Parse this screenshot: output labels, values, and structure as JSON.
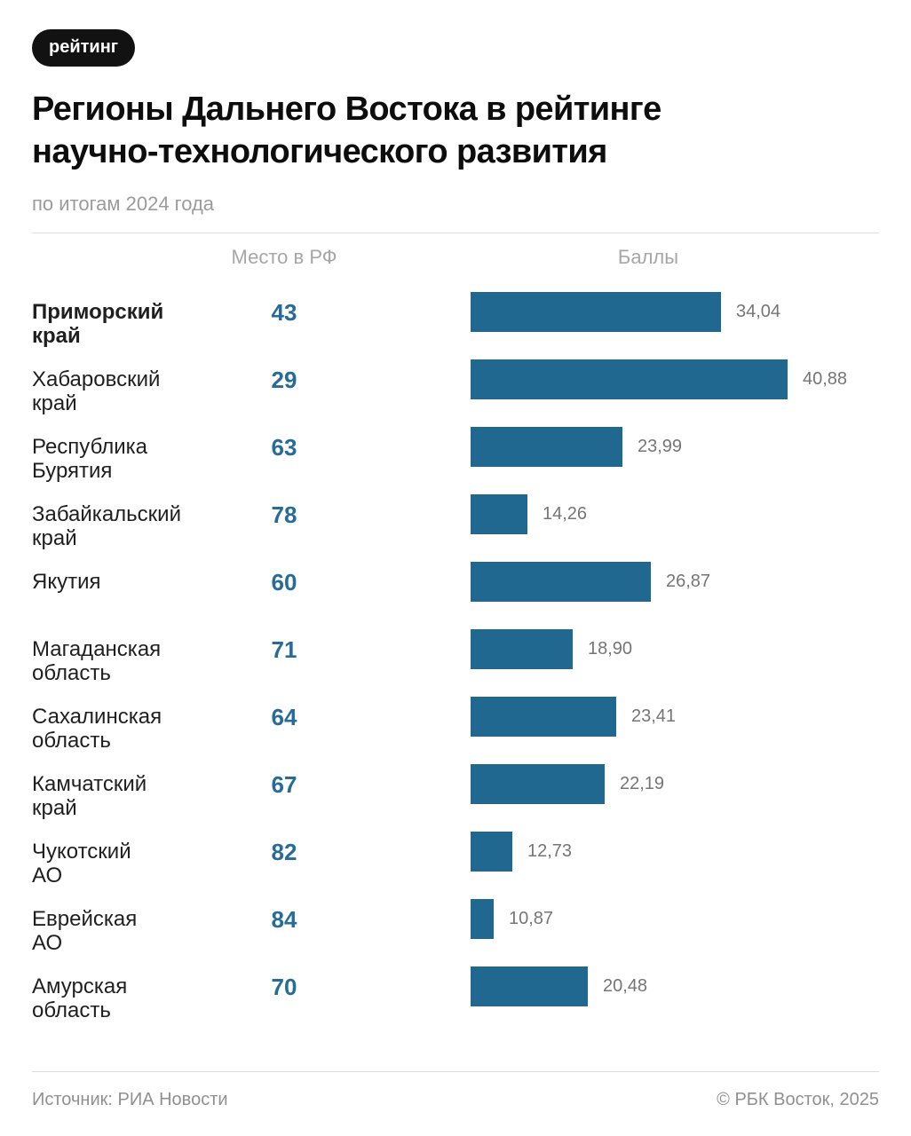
{
  "badge": {
    "label": "рейтинг"
  },
  "header": {
    "title_line1": "Регионы Дальнего Востока в рейтинге",
    "title_line2": "научно-технологического развития",
    "subtitle": "по итогам 2024 года"
  },
  "table": {
    "rank_header": "Место в РФ",
    "score_header": "Баллы"
  },
  "footer": {
    "source": "Источник: РИА Новости",
    "copyright": "© РБК Восток, 2025"
  },
  "colors": {
    "bar": "#20688f",
    "rank_text": "#266b9a",
    "badge_bg": "#121212",
    "badge_text": "#ffffff"
  },
  "chart_data": {
    "type": "bar",
    "orientation": "horizontal",
    "title": "Регионы Дальнего Востока в рейтинге научно-технологического развития",
    "subtitle": "по итогам 2024 года",
    "categories": [
      "Приморский край",
      "Хабаровский край",
      "Республика Бурятия",
      "Забайкальский край",
      "Якутия",
      "Магаданская область",
      "Сахалинская область",
      "Камчатский край",
      "Чукотский АО",
      "Еврейская АО",
      "Амурская область"
    ],
    "series": [
      {
        "name": "Место в РФ",
        "values": [
          43,
          29,
          63,
          78,
          60,
          71,
          64,
          67,
          82,
          84,
          70
        ]
      },
      {
        "name": "Баллы",
        "values": [
          34.04,
          40.88,
          23.99,
          14.26,
          26.87,
          18.9,
          23.41,
          22.19,
          12.73,
          10.87,
          20.48
        ]
      }
    ],
    "value_labels": [
      "34,04",
      "40,88",
      "23,99",
      "14,26",
      "26,87",
      "18,90",
      "23,41",
      "22,19",
      "12,73",
      "10,87",
      "20,48"
    ],
    "legend": "none",
    "grid": "off",
    "highlighted_category": "Приморский край",
    "source": "РИА Новости"
  },
  "rows": [
    {
      "name_lines": [
        "Приморский",
        "край"
      ],
      "rank": "43",
      "score": 34.04,
      "score_label": "34,04",
      "bold": true
    },
    {
      "name_lines": [
        "Хабаровский",
        "край"
      ],
      "rank": "29",
      "score": 40.88,
      "score_label": "40,88",
      "bold": false
    },
    {
      "name_lines": [
        "Республика",
        "Бурятия"
      ],
      "rank": "63",
      "score": 23.99,
      "score_label": "23,99",
      "bold": false
    },
    {
      "name_lines": [
        "Забайкальский",
        "край"
      ],
      "rank": "78",
      "score": 14.26,
      "score_label": "14,26",
      "bold": false
    },
    {
      "name_lines": [
        "Якутия"
      ],
      "rank": "60",
      "score": 26.87,
      "score_label": "26,87",
      "bold": false
    },
    {
      "name_lines": [
        "Магаданская",
        "область"
      ],
      "rank": "71",
      "score": 18.9,
      "score_label": "18,90",
      "bold": false
    },
    {
      "name_lines": [
        "Сахалинская",
        "область"
      ],
      "rank": "64",
      "score": 23.41,
      "score_label": "23,41",
      "bold": false
    },
    {
      "name_lines": [
        "Камчатский",
        "край"
      ],
      "rank": "67",
      "score": 22.19,
      "score_label": "22,19",
      "bold": false
    },
    {
      "name_lines": [
        "Чукотский",
        "АО"
      ],
      "rank": "82",
      "score": 12.73,
      "score_label": "12,73",
      "bold": false
    },
    {
      "name_lines": [
        "Еврейская",
        "АО"
      ],
      "rank": "84",
      "score": 10.87,
      "score_label": "10,87",
      "bold": false
    },
    {
      "name_lines": [
        "Амурская",
        "область"
      ],
      "rank": "70",
      "score": 20.48,
      "score_label": "20,48",
      "bold": false
    }
  ]
}
